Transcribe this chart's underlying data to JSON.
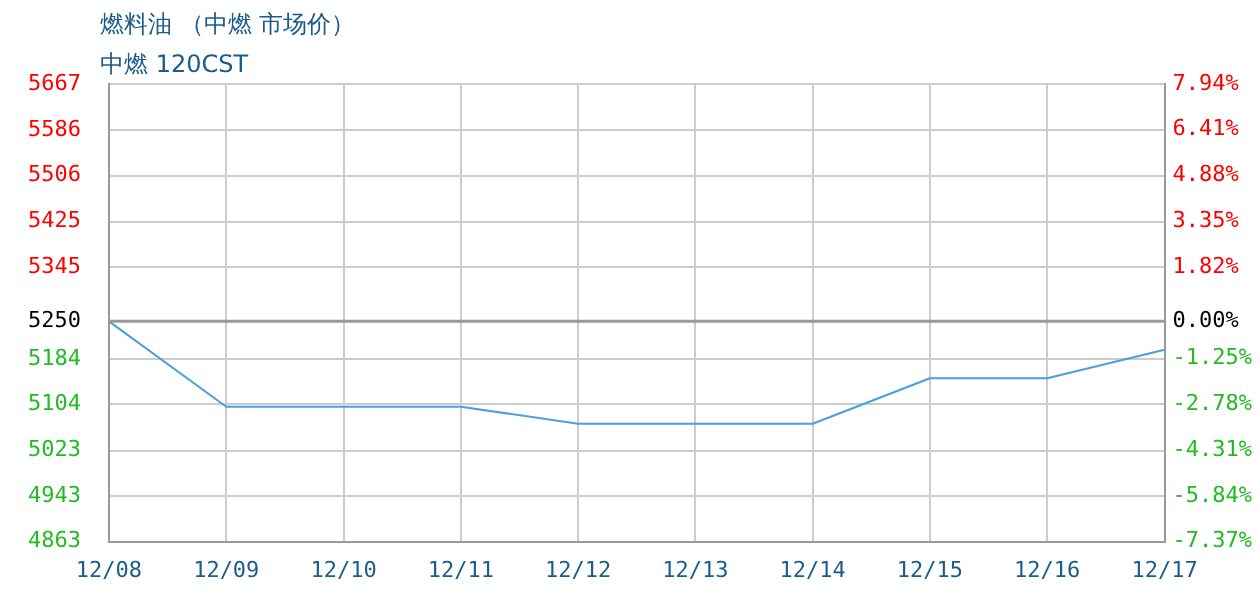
{
  "chart_data": {
    "type": "line",
    "title": "燃料油 （中燃 市场价）",
    "subtitle": "中燃 120CST",
    "categories": [
      "12/08",
      "12/09",
      "12/10",
      "12/11",
      "12/12",
      "12/13",
      "12/14",
      "12/15",
      "12/16",
      "12/17"
    ],
    "series": [
      {
        "color": "#4a9fdc",
        "values": [
          5250,
          5100,
          5100,
          5100,
          5070,
          5070,
          5070,
          5150,
          5150,
          5200
        ]
      }
    ],
    "ylim": [
      4863,
      5667
    ],
    "yticks": [
      4863,
      4943,
      5023,
      5104,
      5184,
      5250,
      5345,
      5425,
      5506,
      5586,
      5667
    ],
    "y2lim": [
      -7.37,
      7.94
    ],
    "y2ticks": [
      {
        "value": -7.37,
        "label": "-7.37%"
      },
      {
        "value": -5.84,
        "label": "-5.84%"
      },
      {
        "value": -4.31,
        "label": "-4.31%"
      },
      {
        "value": -2.78,
        "label": "-2.78%"
      },
      {
        "value": -1.25,
        "label": "-1.25%"
      },
      {
        "value": 0,
        "label": "0.00%"
      },
      {
        "value": 1.82,
        "label": "1.82%"
      },
      {
        "value": 3.35,
        "label": "3.35%"
      },
      {
        "value": 4.88,
        "label": "4.88%"
      },
      {
        "value": 6.41,
        "label": "6.41%"
      },
      {
        "value": 7.94,
        "label": "7.94%"
      }
    ],
    "ref_lines": [
      {
        "axis": "y",
        "value": 5250,
        "color": "#999999"
      }
    ],
    "grid": true,
    "legend": false,
    "marker": "none",
    "line_style": "solid"
  }
}
